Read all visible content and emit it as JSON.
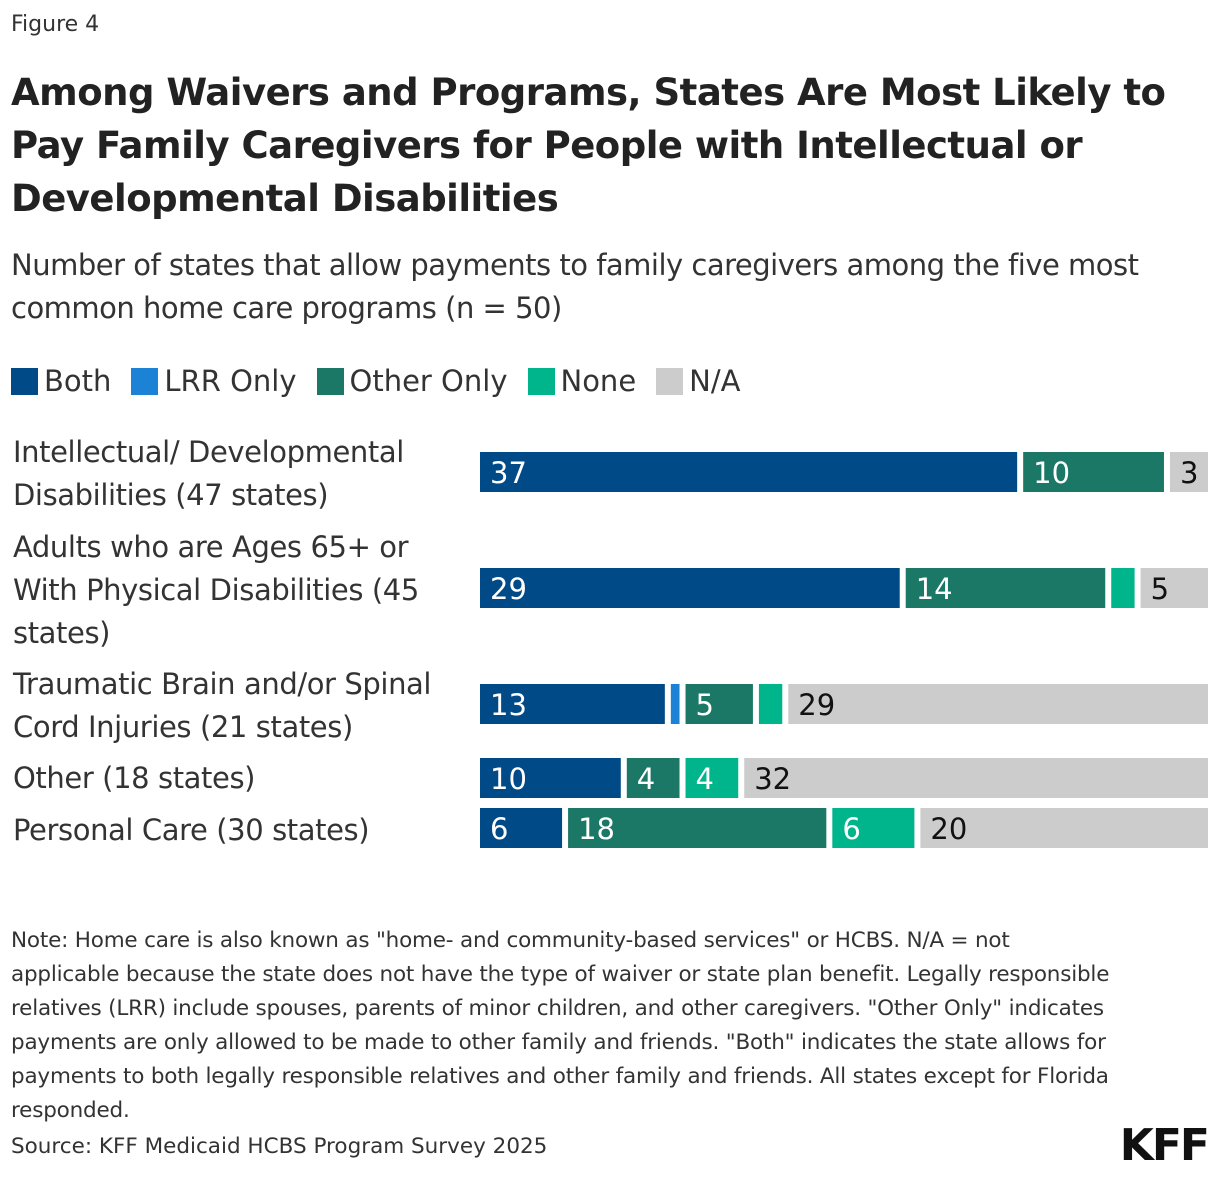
{
  "figure_label": "Figure 4",
  "chart_data": {
    "type": "bar",
    "orientation": "horizontal",
    "stacked": true,
    "title": "Among Waivers and Programs, States Are Most Likely to Pay Family Caregivers for People with Intellectual or Developmental Disabilities",
    "subtitle": "Number of states that allow payments to family caregivers among the five most common home care programs (n = 50)",
    "categories": [
      "Intellectual/ Developmental Disabilities (47 states)",
      "Adults who are Ages 65+ or With Physical Disabilities (45 states)",
      "Traumatic Brain and/or Spinal Cord Injuries (21 states)",
      "Other (18 states)",
      "Personal Care (30 states)"
    ],
    "series": [
      {
        "name": "Both",
        "color": "#004a87",
        "values": [
          37,
          29,
          13,
          10,
          6
        ]
      },
      {
        "name": "LRR Only",
        "color": "#1b82d6",
        "values": [
          0,
          0,
          1,
          0,
          0
        ]
      },
      {
        "name": "Other Only",
        "color": "#1b7866",
        "values": [
          10,
          14,
          5,
          4,
          18
        ]
      },
      {
        "name": "None",
        "color": "#00b58b",
        "values": [
          0,
          2,
          2,
          4,
          6
        ]
      },
      {
        "name": "N/A",
        "color": "#cccccc",
        "values": [
          3,
          5,
          29,
          32,
          20
        ]
      }
    ],
    "xlim": [
      0,
      50
    ],
    "grid": false,
    "legend_position": "top"
  },
  "note": "Note: Home care is also known as \"home- and community-based services\" or HCBS. N/A = not applicable because the state does not have the type of waiver or state plan benefit. Legally responsible relatives (LRR) include spouses, parents of minor children, and other caregivers. \"Other Only\" indicates payments are only allowed to be made to other family and friends. \"Both\" indicates the state allows for payments to both legally responsible relatives and other family and friends. All states except for Florida responded.",
  "source": "Source: KFF Medicaid HCBS Program Survey 2025",
  "logo": "KFF"
}
